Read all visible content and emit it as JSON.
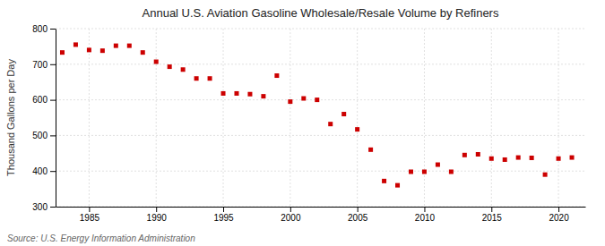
{
  "chart_data": {
    "type": "scatter",
    "title": "Annual U.S. Aviation Gasoline Wholesale/Resale Volume by Refiners",
    "ylabel": "Thousand Gallons per Day",
    "source": "Source: U.S. Energy Information Administration",
    "x": [
      1983,
      1984,
      1985,
      1986,
      1987,
      1988,
      1989,
      1990,
      1991,
      1992,
      1993,
      1994,
      1995,
      1996,
      1997,
      1998,
      1999,
      2000,
      2001,
      2002,
      2003,
      2004,
      2005,
      2006,
      2007,
      2008,
      2009,
      2010,
      2011,
      2012,
      2013,
      2014,
      2015,
      2016,
      2017,
      2018,
      2019,
      2020,
      2021
    ],
    "values": [
      733,
      755,
      740,
      738,
      752,
      752,
      733,
      707,
      693,
      685,
      660,
      660,
      618,
      618,
      616,
      610,
      668,
      595,
      604,
      600,
      532,
      560,
      517,
      460,
      372,
      360,
      398,
      398,
      418,
      398,
      445,
      447,
      435,
      432,
      438,
      437,
      390,
      435,
      438
    ],
    "color": "#cc0000",
    "marker": "square",
    "xlim": [
      1982.5,
      2022
    ],
    "xticks": [
      1985,
      1990,
      1995,
      2000,
      2005,
      2010,
      2015,
      2020
    ],
    "ylim": [
      300,
      800
    ],
    "yticks": [
      300,
      400,
      500,
      600,
      700,
      800
    ],
    "grid": true
  }
}
